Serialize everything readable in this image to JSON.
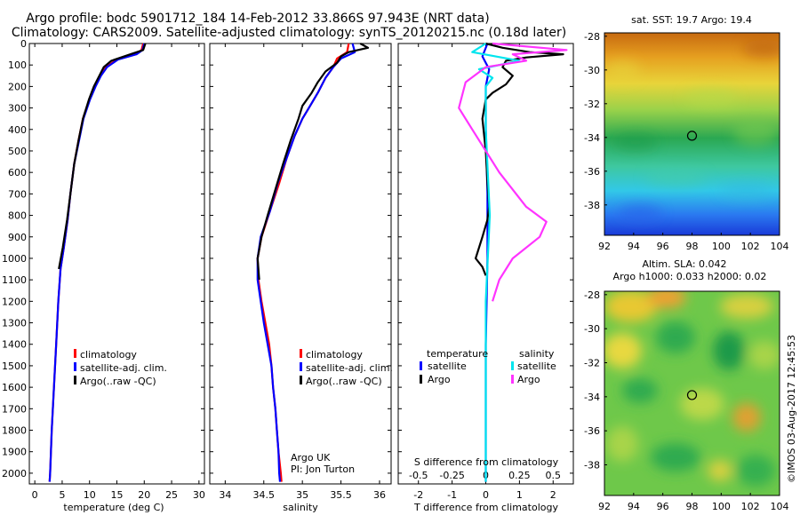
{
  "header": {
    "line1": "Argo profile: bodc 5901712_184 14-Feb-2012 33.866S 97.943E (NRT data)",
    "line2": "Climatology: CARS2009. Satellite-adjusted climatology: synTS_20120215.nc (0.18d later)"
  },
  "colors": {
    "climatology": "#ff0000",
    "satellite": "#0000ff",
    "argo": "#000000",
    "s_satellite": "#00e5ee",
    "s_argo": "#ff33ff"
  },
  "chart_data": [
    {
      "id": "temperature",
      "type": "line",
      "xlabel": "temperature (deg C)",
      "ylabel": "",
      "xlim": [
        -1,
        31
      ],
      "ylim": [
        2050,
        0
      ],
      "xticks": [
        0,
        5,
        10,
        15,
        20,
        25,
        30
      ],
      "yticks": [
        0,
        100,
        200,
        300,
        400,
        500,
        600,
        700,
        800,
        900,
        1000,
        1100,
        1200,
        1300,
        1400,
        1500,
        1600,
        1700,
        1800,
        1900,
        2000
      ],
      "legend": [
        "climatology",
        "satellite-adj. clim.",
        "Argo(..raw -QC)"
      ],
      "series": [
        {
          "name": "climatology",
          "color": "#ff0000",
          "points": [
            [
              19.8,
              0
            ],
            [
              19.5,
              30
            ],
            [
              18.5,
              50
            ],
            [
              15,
              75
            ],
            [
              13,
              110
            ],
            [
              12,
              150
            ],
            [
              11,
              200
            ],
            [
              10,
              260
            ],
            [
              8.8,
              350
            ],
            [
              8,
              450
            ],
            [
              7.2,
              560
            ],
            [
              6.5,
              700
            ],
            [
              6,
              820
            ],
            [
              5.3,
              950
            ],
            [
              4.7,
              1050
            ],
            [
              4.3,
              1200
            ],
            [
              3.9,
              1400
            ],
            [
              3.5,
              1600
            ],
            [
              3.1,
              1800
            ],
            [
              2.8,
              2000
            ],
            [
              2.7,
              2040
            ]
          ]
        },
        {
          "name": "satellite-adj. clim.",
          "color": "#0000ff",
          "points": [
            [
              20,
              0
            ],
            [
              19.7,
              30
            ],
            [
              18.6,
              50
            ],
            [
              15.2,
              75
            ],
            [
              13.2,
              110
            ],
            [
              12.1,
              150
            ],
            [
              11.1,
              200
            ],
            [
              10.1,
              260
            ],
            [
              8.9,
              350
            ],
            [
              8.1,
              450
            ],
            [
              7.2,
              560
            ],
            [
              6.5,
              700
            ],
            [
              6,
              820
            ],
            [
              5.3,
              950
            ],
            [
              4.7,
              1050
            ],
            [
              4.3,
              1200
            ],
            [
              3.9,
              1400
            ],
            [
              3.5,
              1600
            ],
            [
              3.1,
              1800
            ],
            [
              2.8,
              2000
            ],
            [
              2.7,
              2040
            ]
          ]
        },
        {
          "name": "Argo(..raw -QC)",
          "color": "#000000",
          "points": [
            [
              20.2,
              0
            ],
            [
              19.8,
              30
            ],
            [
              17.5,
              50
            ],
            [
              14,
              80
            ],
            [
              12.6,
              110
            ],
            [
              11.8,
              150
            ],
            [
              10.8,
              200
            ],
            [
              9.9,
              260
            ],
            [
              8.8,
              350
            ],
            [
              8,
              450
            ],
            [
              7.2,
              560
            ],
            [
              6.5,
              700
            ],
            [
              5.9,
              820
            ],
            [
              5.1,
              950
            ],
            [
              4.4,
              1050
            ]
          ]
        }
      ]
    },
    {
      "id": "salinity",
      "type": "line",
      "xlabel": "salinity",
      "ylabel": "",
      "xlim": [
        33.8,
        36.15
      ],
      "ylim": [
        2050,
        0
      ],
      "xticks": [
        34,
        34.5,
        35,
        35.5,
        36
      ],
      "legend": [
        "climatology",
        "satellite-adj. clim.",
        "Argo(..raw -QC)"
      ],
      "annotation": [
        "Argo UK",
        "PI: Jon Turton"
      ],
      "series": [
        {
          "name": "climatology",
          "color": "#ff0000",
          "points": [
            [
              35.6,
              0
            ],
            [
              35.58,
              40
            ],
            [
              35.45,
              70
            ],
            [
              35.4,
              110
            ],
            [
              35.3,
              160
            ],
            [
              35.2,
              230
            ],
            [
              35.1,
              290
            ],
            [
              35,
              350
            ],
            [
              34.9,
              430
            ],
            [
              34.8,
              530
            ],
            [
              34.7,
              650
            ],
            [
              34.58,
              780
            ],
            [
              34.47,
              900
            ],
            [
              34.42,
              1000
            ],
            [
              34.43,
              1100
            ],
            [
              34.47,
              1200
            ],
            [
              34.52,
              1300
            ],
            [
              34.57,
              1400
            ],
            [
              34.6,
              1500
            ],
            [
              34.62,
              1600
            ],
            [
              34.65,
              1700
            ],
            [
              34.67,
              1800
            ],
            [
              34.69,
              1900
            ],
            [
              34.72,
              2000
            ],
            [
              34.73,
              2040
            ]
          ]
        },
        {
          "name": "satellite-adj. clim.",
          "color": "#0000ff",
          "points": [
            [
              35.65,
              0
            ],
            [
              35.68,
              40
            ],
            [
              35.5,
              70
            ],
            [
              35.4,
              110
            ],
            [
              35.3,
              160
            ],
            [
              35.2,
              230
            ],
            [
              35.1,
              290
            ],
            [
              35,
              350
            ],
            [
              34.9,
              430
            ],
            [
              34.8,
              530
            ],
            [
              34.68,
              650
            ],
            [
              34.58,
              780
            ],
            [
              34.46,
              900
            ],
            [
              34.42,
              1000
            ],
            [
              34.42,
              1100
            ],
            [
              34.46,
              1200
            ],
            [
              34.5,
              1300
            ],
            [
              34.55,
              1400
            ],
            [
              34.6,
              1500
            ],
            [
              34.62,
              1600
            ],
            [
              34.65,
              1700
            ],
            [
              34.67,
              1800
            ],
            [
              34.69,
              1900
            ],
            [
              34.7,
              2000
            ],
            [
              34.71,
              2040
            ]
          ]
        },
        {
          "name": "Argo(..raw -QC)",
          "color": "#000000",
          "points": [
            [
              35.75,
              0
            ],
            [
              35.85,
              20
            ],
            [
              35.6,
              40
            ],
            [
              35.5,
              60
            ],
            [
              35.45,
              90
            ],
            [
              35.3,
              130
            ],
            [
              35.2,
              180
            ],
            [
              35.12,
              230
            ],
            [
              35,
              290
            ],
            [
              34.95,
              350
            ],
            [
              34.85,
              450
            ],
            [
              34.75,
              560
            ],
            [
              34.65,
              680
            ],
            [
              34.55,
              800
            ],
            [
              34.47,
              900
            ],
            [
              34.42,
              1000
            ],
            [
              34.44,
              1100
            ]
          ]
        }
      ]
    },
    {
      "id": "difference",
      "type": "line",
      "xlabel": "T difference from climatology",
      "xlabel_top": "S difference from climatology",
      "xlim": [
        -2.6,
        2.6
      ],
      "ylim": [
        2050,
        0
      ],
      "xticks": [
        -2,
        -1,
        0,
        1,
        2
      ],
      "xticks_s": [
        -0.5,
        -0.25,
        0,
        0.25,
        0.5
      ],
      "xticks_s_labels": [
        "-0.5",
        "-0.25",
        "0",
        "0.25",
        "0.5"
      ],
      "legend_titles": [
        "temperature",
        "salinity"
      ],
      "legend": [
        "satellite",
        "Argo",
        "satellite",
        "Argo"
      ],
      "series": [
        {
          "name": "T satellite",
          "color": "#0000ff",
          "points": [
            [
              0.05,
              0
            ],
            [
              -0.1,
              60
            ],
            [
              0.1,
              120
            ],
            [
              0,
              200
            ],
            [
              0,
              400
            ],
            [
              0.05,
              700
            ],
            [
              0.05,
              1000
            ],
            [
              0,
              1400
            ],
            [
              0,
              2040
            ]
          ]
        },
        {
          "name": "T Argo",
          "color": "#000000",
          "points": [
            [
              0,
              0
            ],
            [
              0.5,
              20
            ],
            [
              1.3,
              40
            ],
            [
              2.3,
              50
            ],
            [
              1.2,
              65
            ],
            [
              0.6,
              80
            ],
            [
              0.5,
              110
            ],
            [
              0.8,
              150
            ],
            [
              0.6,
              190
            ],
            [
              0.2,
              230
            ],
            [
              0,
              260
            ],
            [
              -0.1,
              350
            ],
            [
              0,
              500
            ],
            [
              0.05,
              650
            ],
            [
              0.1,
              760
            ],
            [
              0.05,
              820
            ],
            [
              -0.1,
              900
            ],
            [
              -0.3,
              1000
            ],
            [
              -0.1,
              1040
            ],
            [
              0,
              1080
            ]
          ]
        },
        {
          "name": "S satellite",
          "color": "#00e5ee",
          "points": [
            [
              0,
              0
            ],
            [
              -0.1,
              40
            ],
            [
              0.25,
              80
            ],
            [
              -0.05,
              120
            ],
            [
              0.05,
              160
            ],
            [
              0,
              200
            ],
            [
              0,
              400
            ],
            [
              0.03,
              800
            ],
            [
              0,
              1200
            ],
            [
              0,
              2040
            ]
          ]
        },
        {
          "name": "S Argo",
          "color": "#ff33ff",
          "points": [
            [
              0.05,
              0
            ],
            [
              0.6,
              30
            ],
            [
              0.2,
              50
            ],
            [
              0.3,
              80
            ],
            [
              0,
              110
            ],
            [
              -0.15,
              180
            ],
            [
              -0.2,
              300
            ],
            [
              -0.1,
              400
            ],
            [
              0.1,
              600
            ],
            [
              0.3,
              760
            ],
            [
              0.45,
              830
            ],
            [
              0.4,
              900
            ],
            [
              0.2,
              1000
            ],
            [
              0.1,
              1100
            ],
            [
              0.05,
              1200
            ]
          ]
        }
      ]
    },
    {
      "id": "sst_map",
      "type": "heatmap",
      "title": "sat. SST: 19.7 Argo: 19.4",
      "xlim": [
        92,
        104
      ],
      "ylim": [
        -39.8,
        -27.8
      ],
      "xticks": [
        92,
        94,
        96,
        98,
        100,
        102,
        104
      ],
      "yticks": [
        -28,
        -30,
        -32,
        -34,
        -36,
        -38
      ],
      "marker": [
        98,
        -33.9
      ]
    },
    {
      "id": "sla_map",
      "type": "heatmap",
      "title_line1": "Altim. SLA: 0.042",
      "title_line2": "Argo h1000: 0.033 h2000: 0.02",
      "xlim": [
        92,
        104
      ],
      "ylim": [
        -39.8,
        -27.8
      ],
      "xticks": [
        92,
        94,
        96,
        98,
        100,
        102,
        104
      ],
      "yticks": [
        -28,
        -30,
        -32,
        -34,
        -36,
        -38
      ],
      "marker": [
        98,
        -33.9
      ]
    }
  ],
  "watermark": "©IMOS 03-Aug-2017 12:45:53"
}
